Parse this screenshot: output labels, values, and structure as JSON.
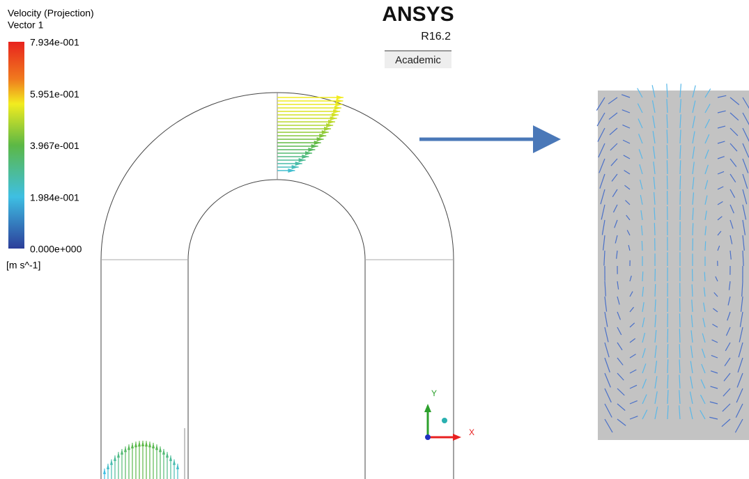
{
  "legend": {
    "title": "Velocity (Projection)",
    "variable": "Vector 1",
    "labels": [
      "7.934e-001",
      "5.951e-001",
      "3.967e-001",
      "1.984e-001",
      "0.000e+000"
    ],
    "unit": "[m s^-1]"
  },
  "logo": {
    "name": "ANSYS",
    "version": "R16.2",
    "edition": "Academic"
  },
  "triad": {
    "y": "Y",
    "x": "X"
  }
}
